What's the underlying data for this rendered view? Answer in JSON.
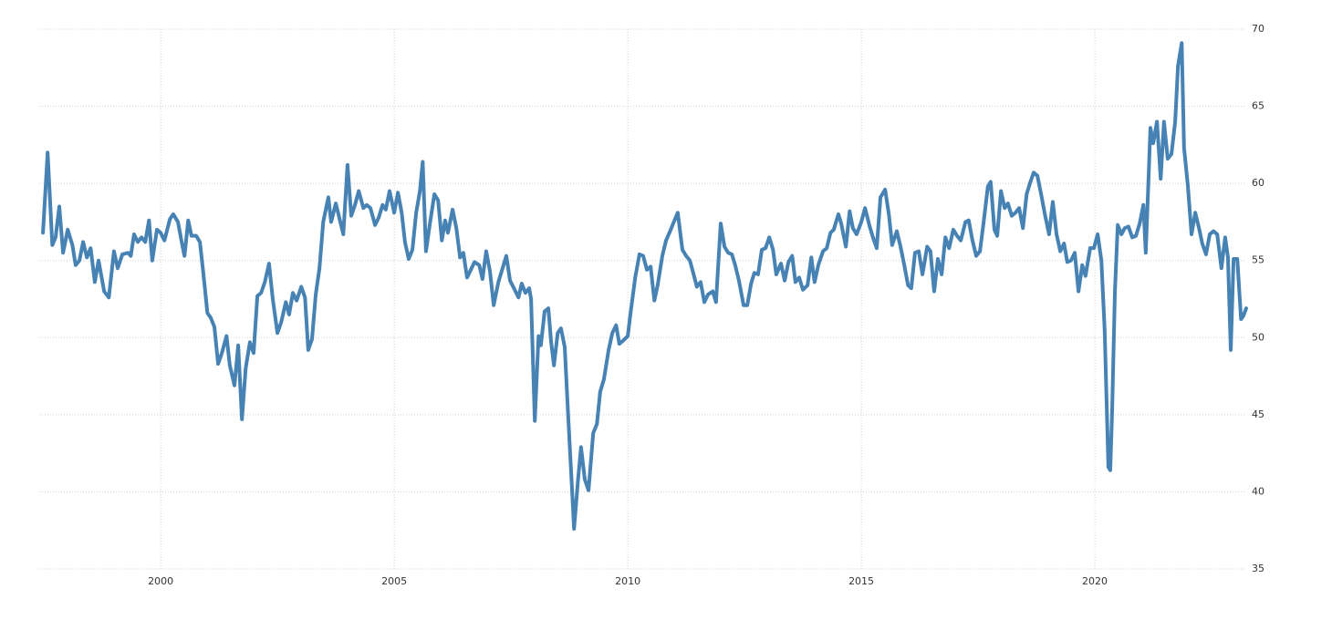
{
  "chart_data": {
    "type": "line",
    "x": [
      1997.48,
      1997.58,
      1997.68,
      1997.75,
      1997.83,
      1997.91,
      1998.01,
      1998.11,
      1998.18,
      1998.26,
      1998.34,
      1998.42,
      1998.5,
      1998.59,
      1998.67,
      1998.79,
      1998.89,
      1999.0,
      1999.08,
      1999.18,
      1999.3,
      1999.36,
      1999.43,
      1999.51,
      1999.59,
      1999.67,
      1999.75,
      1999.82,
      1999.92,
      2000.0,
      2000.08,
      2000.2,
      2000.27,
      2000.37,
      2000.45,
      2000.51,
      2000.59,
      2000.66,
      2000.76,
      2000.84,
      2000.92,
      2001.0,
      2001.07,
      2001.15,
      2001.23,
      2001.31,
      2001.41,
      2001.48,
      2001.58,
      2001.66,
      2001.74,
      2001.82,
      2001.91,
      2001.99,
      2002.07,
      2002.15,
      2002.23,
      2002.32,
      2002.4,
      2002.5,
      2002.58,
      2002.68,
      2002.75,
      2002.83,
      2002.91,
      2003.01,
      2003.09,
      2003.16,
      2003.24,
      2003.32,
      2003.4,
      2003.48,
      2003.59,
      2003.65,
      2003.75,
      2003.83,
      2003.91,
      2004.0,
      2004.08,
      2004.16,
      2004.24,
      2004.34,
      2004.41,
      2004.49,
      2004.59,
      2004.67,
      2004.75,
      2004.82,
      2004.9,
      2005.0,
      2005.08,
      2005.16,
      2005.23,
      2005.31,
      2005.39,
      2005.47,
      2005.55,
      2005.61,
      2005.68,
      2005.76,
      2005.86,
      2005.94,
      2006.02,
      2006.09,
      2006.15,
      2006.25,
      2006.33,
      2006.41,
      2006.48,
      2006.56,
      2006.64,
      2006.72,
      2006.82,
      2006.89,
      2006.97,
      2007.05,
      2007.13,
      2007.23,
      2007.3,
      2007.4,
      2007.48,
      2007.58,
      2007.66,
      2007.73,
      2007.81,
      2007.89,
      2007.93,
      2008.01,
      2008.09,
      2008.14,
      2008.22,
      2008.3,
      2008.36,
      2008.42,
      2008.5,
      2008.57,
      2008.65,
      2008.73,
      2008.81,
      2008.85,
      2008.93,
      2009.0,
      2009.08,
      2009.16,
      2009.26,
      2009.34,
      2009.41,
      2009.49,
      2009.59,
      2009.67,
      2009.75,
      2009.82,
      2009.9,
      2010.0,
      2010.06,
      2010.16,
      2010.25,
      2010.33,
      2010.41,
      2010.49,
      2010.57,
      2010.64,
      2010.74,
      2010.82,
      2010.92,
      2011.0,
      2011.07,
      2011.17,
      2011.25,
      2011.33,
      2011.41,
      2011.48,
      2011.56,
      2011.64,
      2011.72,
      2011.82,
      2011.89,
      2011.99,
      2012.07,
      2012.15,
      2012.23,
      2012.3,
      2012.38,
      2012.48,
      2012.56,
      2012.64,
      2012.71,
      2012.79,
      2012.87,
      2012.95,
      2013.03,
      2013.11,
      2013.18,
      2013.28,
      2013.36,
      2013.44,
      2013.52,
      2013.59,
      2013.67,
      2013.75,
      2013.85,
      2013.93,
      2014.0,
      2014.08,
      2014.18,
      2014.26,
      2014.34,
      2014.41,
      2014.51,
      2014.57,
      2014.67,
      2014.75,
      2014.82,
      2014.9,
      2015.0,
      2015.08,
      2015.18,
      2015.25,
      2015.33,
      2015.41,
      2015.51,
      2015.59,
      2015.66,
      2015.76,
      2015.84,
      2015.92,
      2016.0,
      2016.07,
      2016.15,
      2016.23,
      2016.31,
      2016.41,
      2016.48,
      2016.56,
      2016.64,
      2016.72,
      2016.8,
      2016.88,
      2016.97,
      2017.05,
      2017.13,
      2017.23,
      2017.3,
      2017.38,
      2017.46,
      2017.54,
      2017.62,
      2017.71,
      2017.77,
      2017.85,
      2017.91,
      2017.99,
      2018.07,
      2018.14,
      2018.22,
      2018.3,
      2018.38,
      2018.46,
      2018.54,
      2018.61,
      2018.69,
      2018.77,
      2018.85,
      2018.93,
      2019.02,
      2019.1,
      2019.18,
      2019.26,
      2019.34,
      2019.41,
      2019.49,
      2019.57,
      2019.65,
      2019.73,
      2019.8,
      2019.9,
      2019.98,
      2020.06,
      2020.14,
      2020.21,
      2020.29,
      2020.33,
      2020.37,
      2020.43,
      2020.49,
      2020.57,
      2020.64,
      2020.72,
      2020.8,
      2020.88,
      2020.96,
      2021.04,
      2021.09,
      2021.19,
      2021.25,
      2021.33,
      2021.41,
      2021.48,
      2021.56,
      2021.64,
      2021.72,
      2021.78,
      2021.86,
      2021.91,
      2021.99,
      2022.07,
      2022.15,
      2022.23,
      2022.3,
      2022.38,
      2022.46,
      2022.54,
      2022.62,
      2022.71,
      2022.79,
      2022.85,
      2022.91,
      2022.97,
      2023.05,
      2023.13,
      2023.18,
      2023.24
    ],
    "values": [
      56.8,
      62,
      56,
      56.5,
      58.5,
      55.5,
      57,
      56,
      54.7,
      55,
      56.2,
      55.2,
      55.8,
      53.6,
      55,
      53,
      52.6,
      55.6,
      54.5,
      55.4,
      55.5,
      55.3,
      56.7,
      56.2,
      56.5,
      56.2,
      57.6,
      55,
      57,
      56.8,
      56.3,
      57.7,
      58,
      57.5,
      56.2,
      55.3,
      57.6,
      56.6,
      56.6,
      56.2,
      54,
      51.6,
      51.3,
      50.7,
      48.3,
      49,
      50.1,
      48.2,
      46.9,
      49.5,
      44.7,
      48,
      49.7,
      49,
      52.7,
      52.9,
      53.6,
      54.8,
      52.5,
      50.3,
      51,
      52.3,
      51.5,
      52.9,
      52.4,
      53.3,
      52.6,
      49.2,
      49.9,
      52.8,
      54.5,
      57.5,
      59.1,
      57.5,
      58.7,
      57.7,
      56.7,
      61.2,
      57.9,
      58.6,
      59.5,
      58.4,
      58.6,
      58.4,
      57.3,
      57.8,
      58.6,
      58.3,
      59.5,
      58.1,
      59.4,
      58.1,
      56.2,
      55.1,
      55.7,
      58.1,
      59.5,
      61.4,
      55.6,
      57.3,
      59.3,
      58.9,
      56.3,
      57.6,
      56.8,
      58.3,
      57.1,
      55.2,
      55.5,
      53.9,
      54.4,
      54.9,
      54.7,
      53.8,
      55.6,
      54.3,
      52.1,
      53.6,
      54.3,
      55.3,
      53.7,
      53.1,
      52.6,
      53.5,
      52.9,
      53.2,
      52.5,
      44.6,
      50.1,
      49.5,
      51.7,
      51.9,
      49.7,
      48.2,
      50.3,
      50.6,
      49.4,
      44.6,
      40,
      37.6,
      40.6,
      42.9,
      40.8,
      40.1,
      43.8,
      44.4,
      46.5,
      47.3,
      49.2,
      50.3,
      50.8,
      49.6,
      49.8,
      50.1,
      51.6,
      53.9,
      55.4,
      55.3,
      54.4,
      54.6,
      52.4,
      53.4,
      55.3,
      56.3,
      57,
      57.6,
      58.1,
      55.7,
      55.3,
      55,
      54.1,
      53.3,
      53.6,
      52.3,
      52.8,
      53,
      52.3,
      57.4,
      55.9,
      55.5,
      55.4,
      54.7,
      53.7,
      52.1,
      52.1,
      53.5,
      54.2,
      54.1,
      55.7,
      55.8,
      56.5,
      55.7,
      54.1,
      54.8,
      53.7,
      54.9,
      55.3,
      53.6,
      53.9,
      53.1,
      53.4,
      55.2,
      53.6,
      54.7,
      55.6,
      55.8,
      56.8,
      57,
      58,
      57.4,
      55.9,
      58.2,
      57.1,
      56.7,
      57.5,
      58.4,
      57.2,
      56.5,
      55.8,
      59.1,
      59.6,
      58,
      56,
      56.9,
      55.9,
      54.7,
      53.4,
      53.2,
      55.5,
      55.6,
      54.1,
      55.9,
      55.6,
      53,
      55.1,
      54.1,
      56.5,
      55.8,
      57,
      56.6,
      56.3,
      57.5,
      57.6,
      56.3,
      55.3,
      55.6,
      57.5,
      59.8,
      60.1,
      57,
      56.6,
      59.5,
      58.4,
      58.7,
      57.9,
      58.1,
      58.4,
      57.1,
      59.3,
      60,
      60.7,
      60.5,
      59.3,
      58,
      56.7,
      58.8,
      56.7,
      55.6,
      56.1,
      54.9,
      55,
      55.5,
      53,
      54.7,
      54,
      55.8,
      55.8,
      56.7,
      55,
      50.5,
      41.6,
      41.4,
      45.2,
      53,
      57.3,
      56.7,
      57.1,
      57.2,
      56.5,
      56.6,
      57.4,
      58.6,
      55.5,
      63.6,
      62.6,
      64,
      60.3,
      64,
      61.6,
      61.9,
      64,
      67.6,
      69.1,
      62.3,
      59.9,
      56.7,
      58.1,
      57.1,
      56.1,
      55.4,
      56.7,
      56.9,
      56.7,
      54.5,
      56.5,
      55.2,
      49.2,
      55.1,
      55.1,
      51.2,
      51.4,
      51.9
    ],
    "color": "#4682b4",
    "xlim": [
      1997.4,
      2023.3
    ],
    "xticks": [
      2000,
      2005,
      2010,
      2015,
      2020
    ],
    "ylim": [
      35,
      70
    ],
    "yticks": [
      35,
      40,
      45,
      50,
      55,
      60,
      65,
      70
    ],
    "grid": true
  }
}
